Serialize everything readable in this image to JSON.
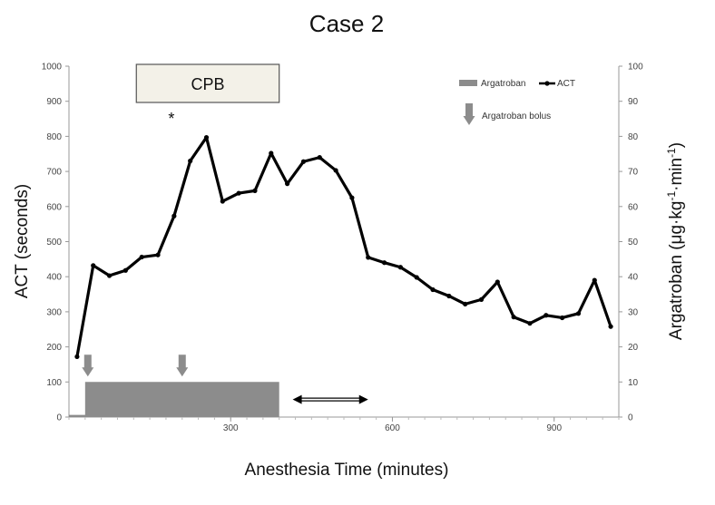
{
  "chart_data": {
    "type": "line",
    "title": "Case 2",
    "xlabel": "Anesthesia Time (minutes)",
    "ylabel": "ACT (seconds)",
    "y2label_prefix": "Argatroban (μg·kg",
    "y2label_sup1": "-1",
    "y2label_mid": "·min",
    "y2label_sup2": "-1",
    "y2label_suffix": ")",
    "xlim": [
      0,
      1020
    ],
    "ylim": [
      0,
      1000
    ],
    "y2lim": [
      0,
      100
    ],
    "x_ticks": [
      300,
      600,
      900
    ],
    "y_ticks": [
      0,
      100,
      200,
      300,
      400,
      500,
      600,
      700,
      800,
      900,
      1000
    ],
    "y2_ticks": [
      0,
      10,
      20,
      30,
      40,
      50,
      60,
      70,
      80,
      90,
      100
    ],
    "grid": false,
    "series": [
      {
        "name": "ACT",
        "color": "#000000",
        "x": [
          15,
          45,
          75,
          105,
          135,
          165,
          195,
          225,
          255,
          285,
          315,
          345,
          375,
          405,
          435,
          465,
          495,
          525,
          555,
          585,
          615,
          645,
          675,
          705,
          735,
          765,
          795,
          825,
          855,
          885,
          915,
          945,
          975,
          1005
        ],
        "y": [
          172,
          432,
          403,
          418,
          456,
          462,
          573,
          730,
          797,
          615,
          638,
          645,
          752,
          665,
          728,
          740,
          703,
          625,
          455,
          440,
          427,
          398,
          363,
          345,
          322,
          335,
          385,
          285,
          267,
          290,
          283,
          295,
          390,
          258
        ]
      },
      {
        "name": "Argatroban",
        "type": "area",
        "color": "#8c8c8c",
        "axis": "right",
        "x": [
          0,
          30,
          30,
          390,
          390
        ],
        "y": [
          0.6,
          0.6,
          10,
          10,
          0
        ]
      }
    ],
    "bolus_times": [
      35,
      210
    ],
    "legend": {
      "position": "top-right",
      "argatroban_label": "Argatroban",
      "act_label": "ACT",
      "bolus_label": "Argatroban bolus"
    },
    "annotations": {
      "cpb_label": "CPB",
      "cpb_start": 125,
      "cpb_end": 390,
      "asterisk": "*",
      "asterisk_x": 190,
      "asterisk_y": 855,
      "double_arrow_start": 415,
      "double_arrow_end": 555,
      "double_arrow_y": 50
    }
  }
}
